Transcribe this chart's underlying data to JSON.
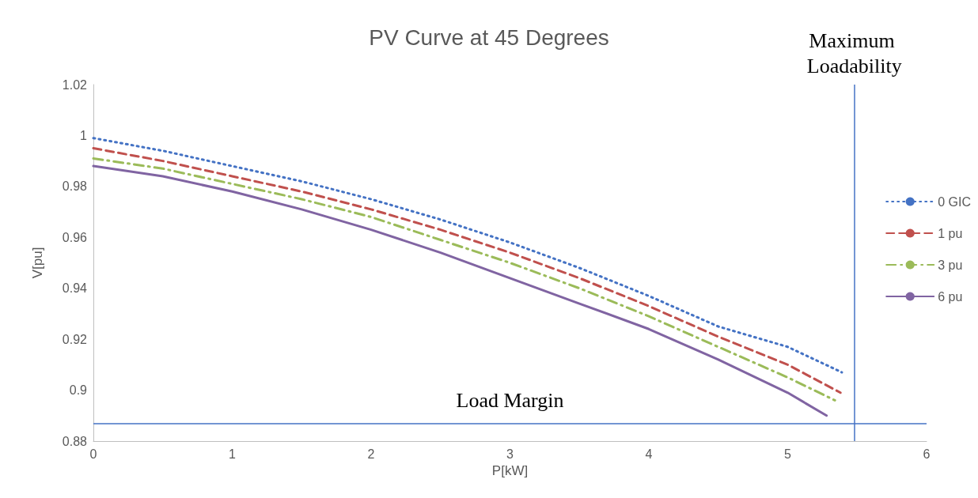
{
  "chart_data": {
    "type": "line",
    "title": "PV Curve at 45 Degrees",
    "xlabel": "P[kW]",
    "ylabel": "V[pu]",
    "xlim": [
      0,
      6
    ],
    "xticks": [
      0,
      1,
      2,
      3,
      4,
      5,
      6
    ],
    "ylim": [
      0.88,
      1.02
    ],
    "yticks": [
      0.88,
      0.9,
      0.92,
      0.94,
      0.96,
      0.98,
      1,
      1.02
    ],
    "grid": false,
    "legend": "right",
    "marker": "none",
    "series": [
      {
        "name": "0 GIC",
        "color": "#4472c4",
        "line_style": "dotted",
        "x": [
          0,
          0.5,
          1,
          1.5,
          2,
          2.5,
          3,
          3.5,
          4,
          4.5,
          5,
          5.39
        ],
        "values": [
          0.999,
          0.994,
          0.988,
          0.982,
          0.975,
          0.967,
          0.958,
          0.948,
          0.937,
          0.925,
          0.917,
          0.907
        ]
      },
      {
        "name": "1 pu",
        "color": "#c0504d",
        "line_style": "dashed",
        "x": [
          0,
          0.5,
          1,
          1.5,
          2,
          2.5,
          3,
          3.5,
          4,
          4.5,
          5,
          5.38
        ],
        "values": [
          0.995,
          0.99,
          0.984,
          0.978,
          0.971,
          0.963,
          0.954,
          0.944,
          0.933,
          0.921,
          0.91,
          0.899
        ]
      },
      {
        "name": "3 pu",
        "color": "#9bbb59",
        "line_style": "dashdot",
        "x": [
          0,
          0.5,
          1,
          1.5,
          2,
          2.5,
          3,
          3.5,
          4,
          4.5,
          5,
          5.34
        ],
        "values": [
          0.991,
          0.987,
          0.981,
          0.975,
          0.968,
          0.959,
          0.95,
          0.94,
          0.929,
          0.917,
          0.905,
          0.896
        ]
      },
      {
        "name": "6 pu",
        "color": "#8064a2",
        "line_style": "solid",
        "x": [
          0,
          0.5,
          1,
          1.5,
          2,
          2.5,
          3,
          3.5,
          4,
          4.5,
          5,
          5.28
        ],
        "values": [
          0.988,
          0.984,
          0.978,
          0.971,
          0.963,
          0.954,
          0.944,
          0.934,
          0.924,
          0.912,
          0.899,
          0.89
        ]
      }
    ],
    "ref_lines": [
      {
        "axis": "y",
        "value": 0.887,
        "label": "Load Margin",
        "color": "#4472c4"
      },
      {
        "axis": "x",
        "value": 5.48,
        "label": "Maximum Loadability",
        "color": "#4472c4"
      }
    ]
  }
}
